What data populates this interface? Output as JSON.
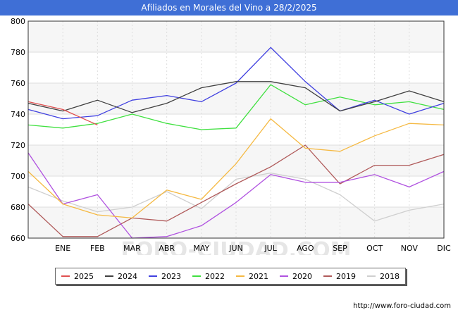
{
  "title": "Afiliados en Morales del Vino a 28/2/2025",
  "source": "http://www.foro-ciudad.com",
  "watermark": "FORO-CIUDAD.COM",
  "chart_data": {
    "type": "line",
    "title": "Afiliados en Morales del Vino a 28/2/2025",
    "categories": [
      "",
      "ENE",
      "FEB",
      "MAR",
      "ABR",
      "MAY",
      "JUN",
      "JUL",
      "AGO",
      "SEP",
      "OCT",
      "NOV",
      "DIC"
    ],
    "ylim": [
      660,
      800
    ],
    "yticks": [
      660,
      680,
      700,
      720,
      740,
      760,
      780,
      800
    ],
    "grid": true,
    "legend_position": "bottom",
    "series": [
      {
        "name": "2025",
        "color": "#e05050",
        "values": [
          748,
          743,
          733,
          null,
          null,
          null,
          null,
          null,
          null,
          null,
          null,
          null,
          null
        ]
      },
      {
        "name": "2024",
        "color": "#404040",
        "values": [
          747,
          742,
          749,
          741,
          747,
          757,
          761,
          761,
          757,
          742,
          748,
          755,
          748
        ]
      },
      {
        "name": "2023",
        "color": "#4040e0",
        "values": [
          743,
          737,
          739,
          749,
          752,
          748,
          760,
          783,
          761,
          742,
          749,
          740,
          747
        ]
      },
      {
        "name": "2022",
        "color": "#40e040",
        "values": [
          733,
          731,
          734,
          740,
          734,
          730,
          731,
          759,
          746,
          751,
          746,
          748,
          743
        ]
      },
      {
        "name": "2021",
        "color": "#f5b942",
        "values": [
          703,
          682,
          675,
          673,
          691,
          685,
          708,
          737,
          718,
          716,
          726,
          734,
          733
        ]
      },
      {
        "name": "2020",
        "color": "#b052e0",
        "values": [
          715,
          682,
          688,
          660,
          661,
          668,
          683,
          701,
          696,
          696,
          701,
          693,
          703
        ]
      },
      {
        "name": "2019",
        "color": "#b05a5a",
        "values": [
          682,
          661,
          661,
          673,
          671,
          683,
          695,
          706,
          720,
          695,
          707,
          707,
          714
        ]
      },
      {
        "name": "2018",
        "color": "#cfcfcf",
        "values": [
          693,
          684,
          677,
          680,
          690,
          679,
          698,
          702,
          698,
          688,
          671,
          678,
          682
        ]
      }
    ]
  }
}
